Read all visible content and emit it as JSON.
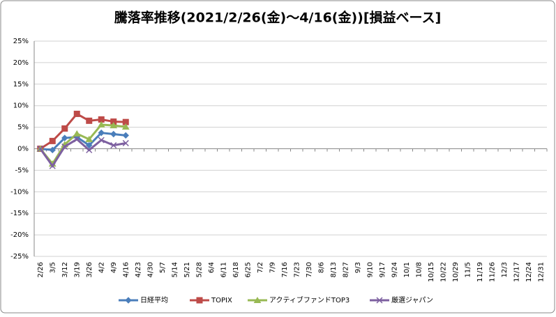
{
  "chart_data": {
    "type": "line",
    "title": "騰落率推移(2021/2/26(金)～4/16(金))[損益ベース]",
    "categories": [
      "2/26",
      "3/5",
      "3/12",
      "3/19",
      "3/26",
      "4/2",
      "4/9",
      "4/16",
      "4/23",
      "4/30",
      "5/7",
      "5/14",
      "5/21",
      "5/28",
      "6/4",
      "6/11",
      "6/18",
      "6/25",
      "7/2",
      "7/9",
      "7/16",
      "7/23",
      "7/30",
      "8/6",
      "8/13",
      "8/27",
      "9/3",
      "9/10",
      "9/17",
      "9/24",
      "10/1",
      "10/8",
      "10/15",
      "10/22",
      "10/29",
      "11/5",
      "11/19",
      "11/26",
      "12/3",
      "12/17",
      "12/24",
      "12/31"
    ],
    "series": [
      {
        "name": "日経平均",
        "color": "#4a7ebb",
        "marker": "diamond",
        "values": [
          0,
          -0.3,
          2.5,
          2.7,
          0.8,
          3.7,
          3.4,
          3.1,
          null,
          null,
          null,
          null,
          null,
          null,
          null,
          null,
          null,
          null,
          null,
          null,
          null,
          null,
          null,
          null,
          null,
          null,
          null,
          null,
          null,
          null,
          null,
          null,
          null,
          null,
          null,
          null,
          null,
          null,
          null,
          null,
          null,
          null
        ]
      },
      {
        "name": "TOPIX",
        "color": "#be4b48",
        "marker": "square",
        "values": [
          0,
          1.8,
          4.7,
          8.1,
          6.5,
          6.8,
          6.3,
          6.2,
          null,
          null,
          null,
          null,
          null,
          null,
          null,
          null,
          null,
          null,
          null,
          null,
          null,
          null,
          null,
          null,
          null,
          null,
          null,
          null,
          null,
          null,
          null,
          null,
          null,
          null,
          null,
          null,
          null,
          null,
          null,
          null,
          null,
          null
        ]
      },
      {
        "name": "アクティブファンドTOP3",
        "color": "#98b954",
        "marker": "triangle",
        "values": [
          0,
          -3.5,
          1.0,
          3.5,
          2.2,
          5.6,
          5.4,
          5.1,
          null,
          null,
          null,
          null,
          null,
          null,
          null,
          null,
          null,
          null,
          null,
          null,
          null,
          null,
          null,
          null,
          null,
          null,
          null,
          null,
          null,
          null,
          null,
          null,
          null,
          null,
          null,
          null,
          null,
          null,
          null,
          null,
          null,
          null
        ]
      },
      {
        "name": "厳選ジャパン",
        "color": "#7d60a0",
        "marker": "x",
        "values": [
          0,
          -4.0,
          0.5,
          2.2,
          -0.3,
          2.0,
          0.8,
          1.3,
          null,
          null,
          null,
          null,
          null,
          null,
          null,
          null,
          null,
          null,
          null,
          null,
          null,
          null,
          null,
          null,
          null,
          null,
          null,
          null,
          null,
          null,
          null,
          null,
          null,
          null,
          null,
          null,
          null,
          null,
          null,
          null,
          null,
          null
        ]
      }
    ],
    "ylim": [
      -25,
      25
    ],
    "yticks": [
      {
        "value": -25,
        "label": "-25%"
      },
      {
        "value": -20,
        "label": "-20%"
      },
      {
        "value": -15,
        "label": "-15%"
      },
      {
        "value": -10,
        "label": "-10%"
      },
      {
        "value": -5,
        "label": "-5%"
      },
      {
        "value": 0,
        "label": "0%"
      },
      {
        "value": 5,
        "label": "5%"
      },
      {
        "value": 10,
        "label": "10%"
      },
      {
        "value": 15,
        "label": "15%"
      },
      {
        "value": 20,
        "label": "20%"
      },
      {
        "value": 25,
        "label": "25%"
      }
    ],
    "grid": true,
    "legend": "bottom"
  }
}
